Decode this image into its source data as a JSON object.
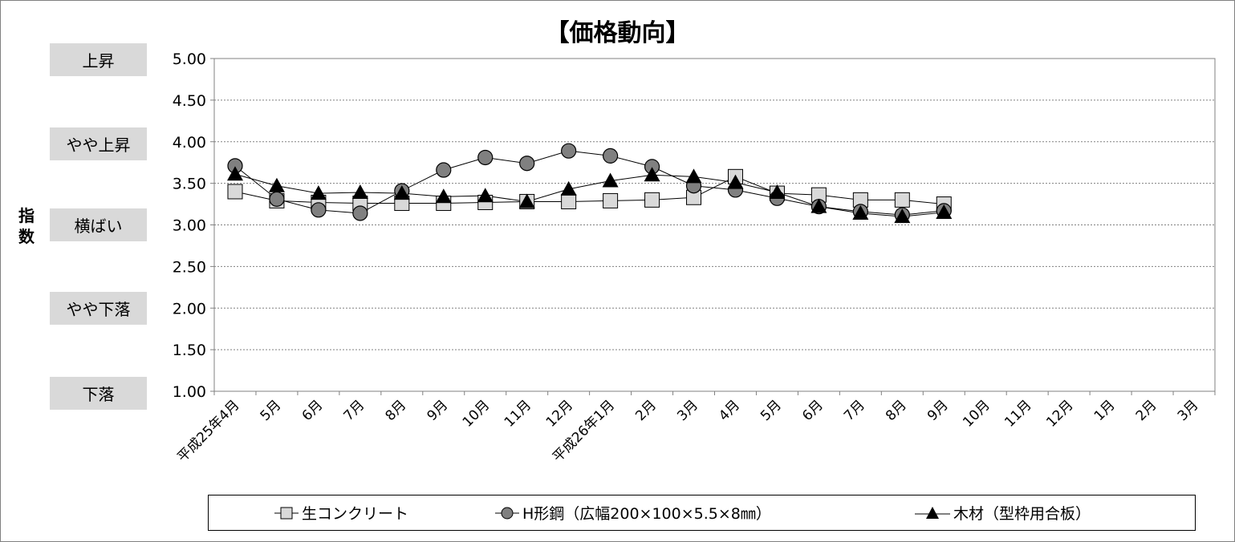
{
  "chart_data": {
    "type": "line",
    "title": "【価格動向】",
    "ylabel": "指数",
    "ylim": [
      1.0,
      5.0
    ],
    "yticks": [
      "1.00",
      "1.50",
      "2.00",
      "2.50",
      "3.00",
      "3.50",
      "4.00",
      "4.50",
      "5.00"
    ],
    "grid": true,
    "legend_position": "bottom",
    "y_bands": [
      {
        "label": "上昇",
        "value": 5.0
      },
      {
        "label": "やや上昇",
        "value": 4.0
      },
      {
        "label": "横ばい",
        "value": 3.0
      },
      {
        "label": "やや下落",
        "value": 2.0
      },
      {
        "label": "下落",
        "value": 1.0
      }
    ],
    "categories": [
      "平成25年4月",
      "5月",
      "6月",
      "7月",
      "8月",
      "9月",
      "10月",
      "11月",
      "12月",
      "平成26年1月",
      "2月",
      "3月",
      "4月",
      "5月",
      "6月",
      "7月",
      "8月",
      "9月",
      "10月",
      "11月",
      "12月",
      "1月",
      "2月",
      "3月"
    ],
    "series": [
      {
        "name": "生コンクリート",
        "marker": "square",
        "values": [
          3.4,
          3.29,
          3.27,
          3.26,
          3.26,
          3.26,
          3.27,
          3.28,
          3.28,
          3.29,
          3.3,
          3.33,
          3.58,
          3.38,
          3.36,
          3.3,
          3.3,
          3.25,
          null,
          null,
          null,
          null,
          null,
          null
        ]
      },
      {
        "name": "H形鋼（広幅200×100×5.5×8㎜）",
        "marker": "circle",
        "values": [
          3.71,
          3.31,
          3.18,
          3.14,
          3.41,
          3.66,
          3.81,
          3.74,
          3.89,
          3.83,
          3.7,
          3.47,
          3.42,
          3.32,
          3.22,
          3.16,
          3.12,
          3.17,
          null,
          null,
          null,
          null,
          null,
          null
        ]
      },
      {
        "name": "木材（型枠用合板）",
        "marker": "triangle",
        "values": [
          3.61,
          3.47,
          3.38,
          3.39,
          3.38,
          3.34,
          3.35,
          3.28,
          3.43,
          3.53,
          3.6,
          3.58,
          3.51,
          3.39,
          3.22,
          3.14,
          3.1,
          3.15,
          null,
          null,
          null,
          null,
          null,
          null
        ]
      }
    ]
  },
  "colors": {
    "square_fill": "#d9d9d9",
    "circle_fill": "#808080",
    "triangle_fill": "#000000",
    "band_bg": "#d9d9d9",
    "grid": "#808080"
  }
}
